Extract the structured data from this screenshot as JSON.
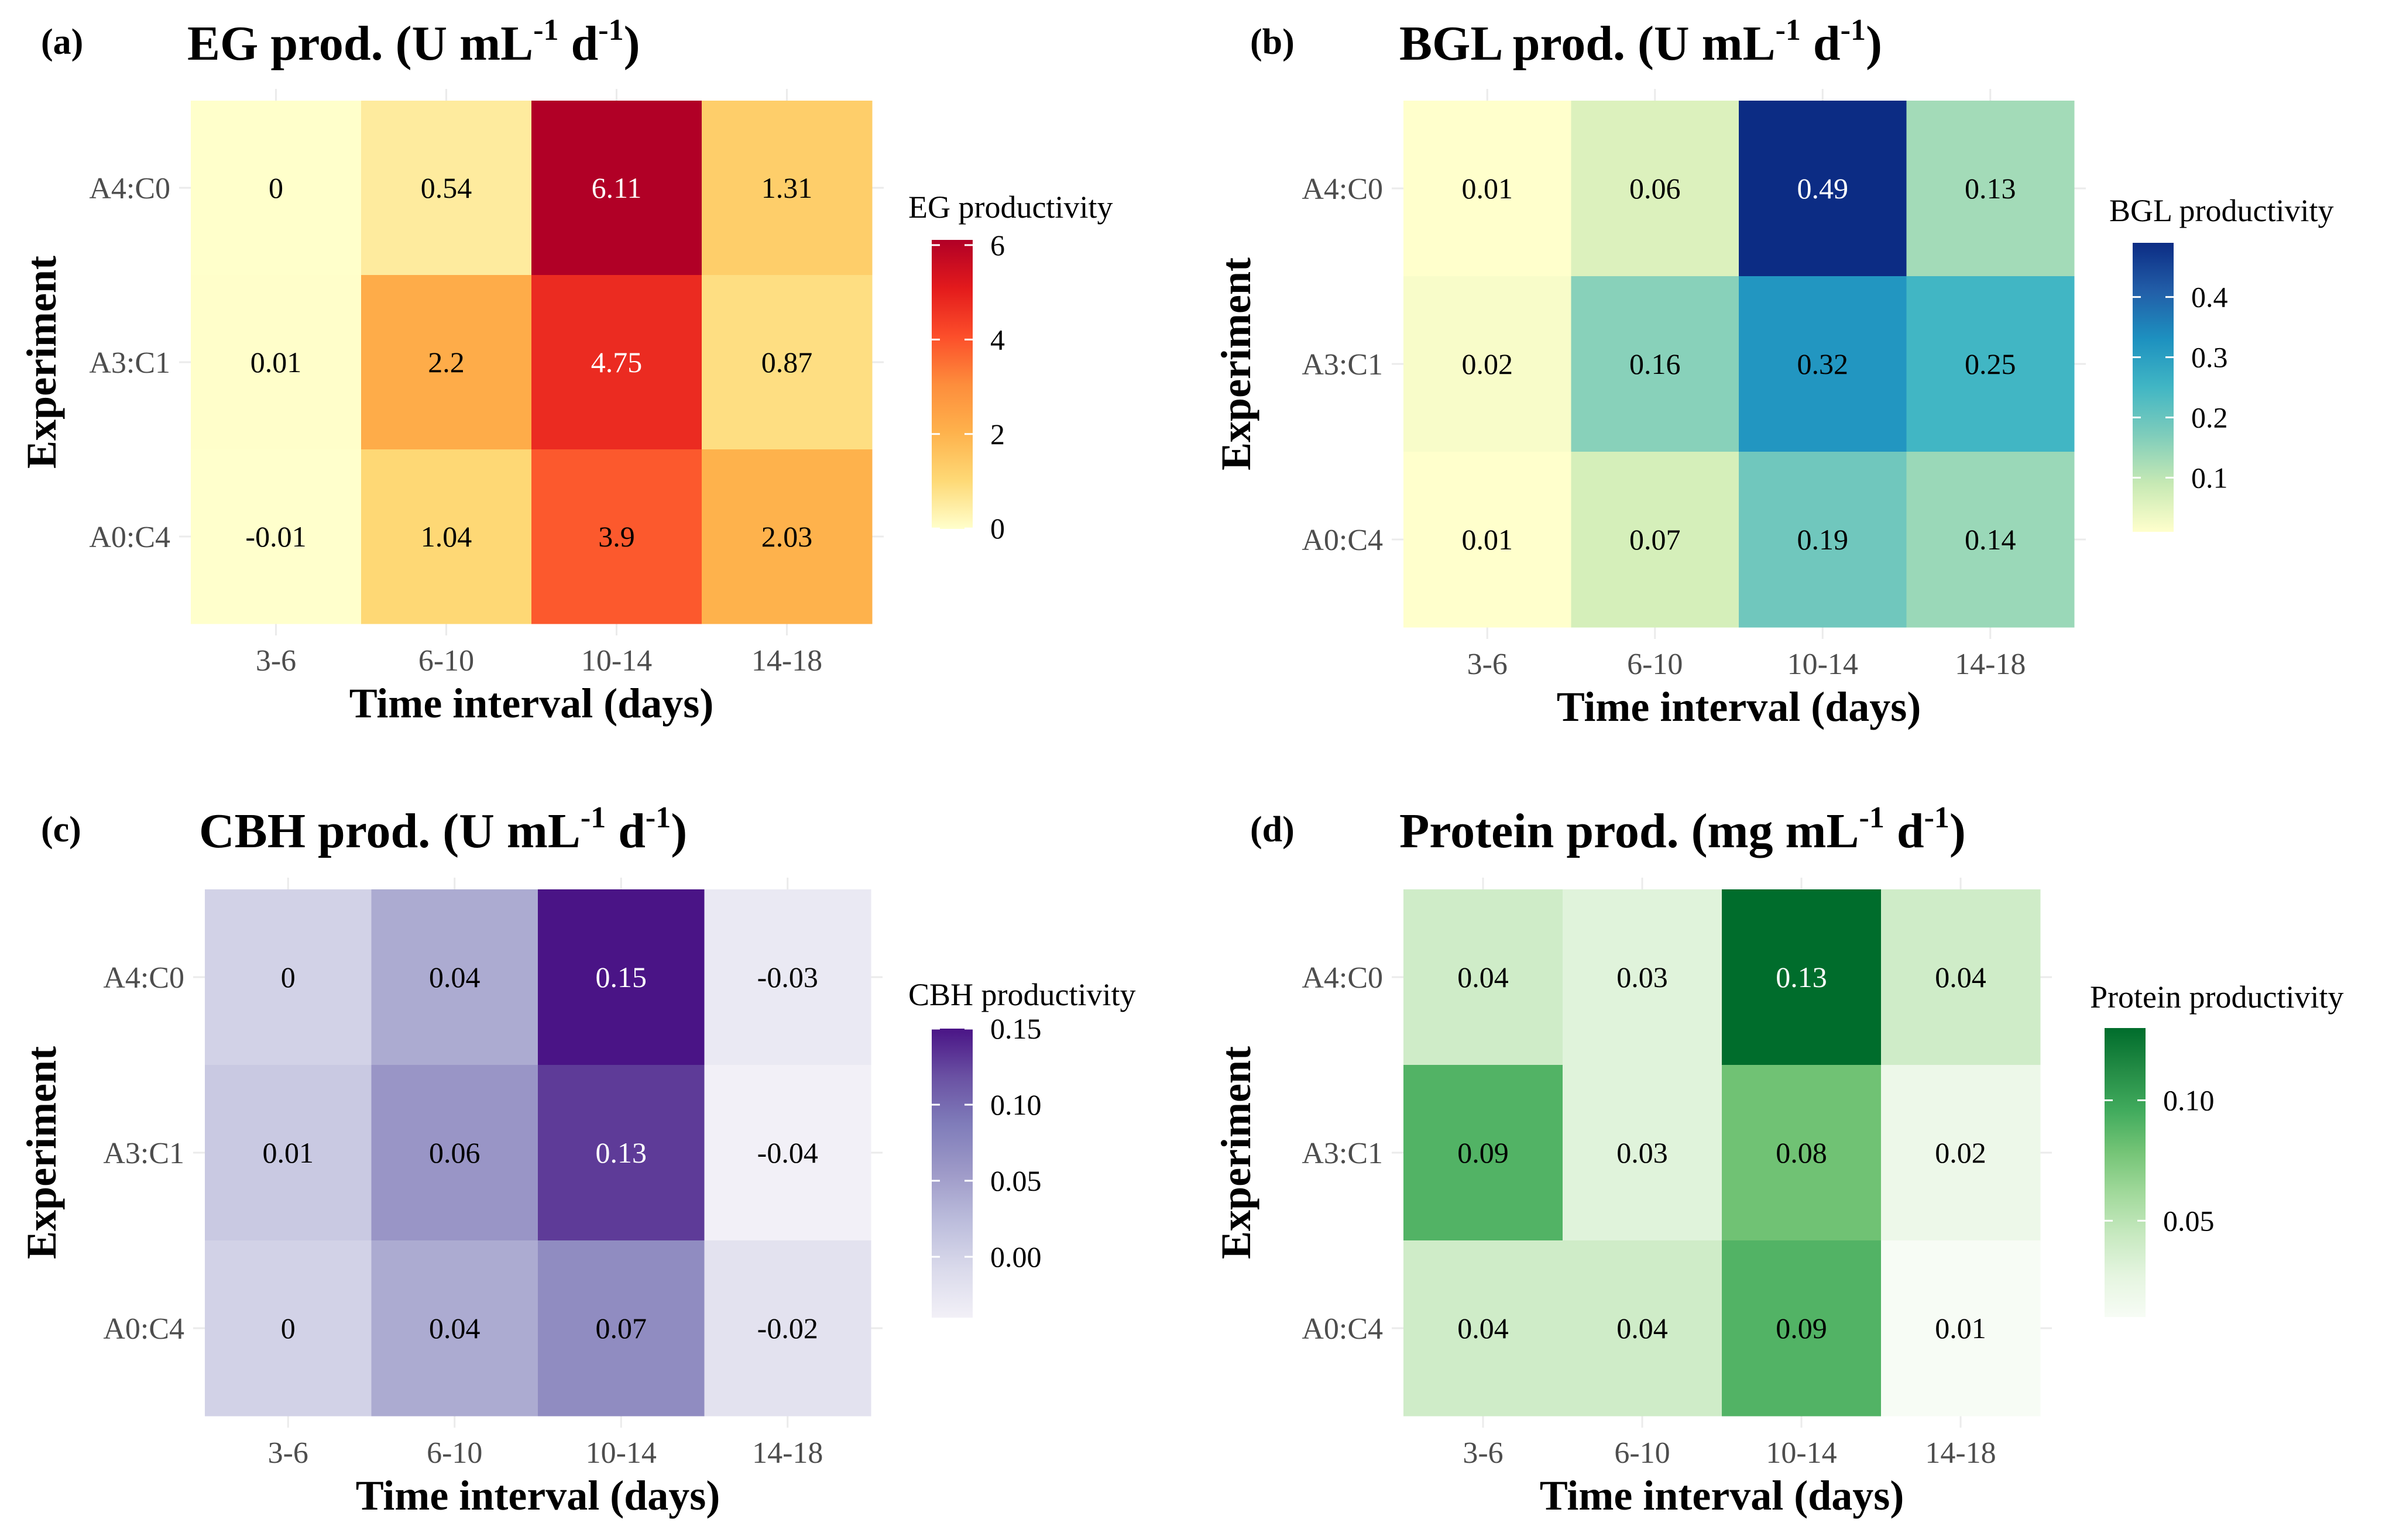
{
  "chart_data": [
    {
      "type": "heatmap",
      "panel_label": "(a)",
      "title_main": "EG prod.  (U mL",
      "title_sup1": "-1",
      "title_mid": " d",
      "title_sup2": "-1",
      "title_end": ")",
      "xlabel": "Time interval (days)",
      "ylabel": "Experiment",
      "x_categories": [
        "3-6",
        "6-10",
        "10-14",
        "14-18"
      ],
      "y_categories": [
        "A4:C0",
        "A3:C1",
        "A0:C4"
      ],
      "cell_labels": [
        [
          "0",
          "0.54",
          "6.11",
          "1.31"
        ],
        [
          "0.01",
          "2.2",
          "4.75",
          "0.87"
        ],
        [
          "-0.01",
          "1.04",
          "3.9",
          "2.03"
        ]
      ],
      "values": [
        [
          0,
          0.54,
          6.11,
          1.31
        ],
        [
          0.01,
          2.2,
          4.75,
          0.87
        ],
        [
          -0.01,
          1.04,
          3.9,
          2.03
        ]
      ],
      "legend_title": "EG productivity",
      "legend_ticks": [
        0,
        2,
        4,
        6
      ],
      "legend_tick_labels": [
        "0",
        "2",
        "4",
        "6"
      ],
      "scale_range": [
        -0.01,
        6.11
      ],
      "colors": [
        "#ffffcc",
        "#fed976",
        "#feb24c",
        "#fd8d3c",
        "#fc4e2a",
        "#e31a1c",
        "#b10026"
      ]
    },
    {
      "type": "heatmap",
      "panel_label": "(b)",
      "title_main": "BGL prod.  (U mL",
      "title_sup1": "-1",
      "title_mid": " d",
      "title_sup2": "-1",
      "title_end": ")",
      "xlabel": "Time interval (days)",
      "ylabel": "Experiment",
      "x_categories": [
        "3-6",
        "6-10",
        "10-14",
        "14-18"
      ],
      "y_categories": [
        "A4:C0",
        "A3:C1",
        "A0:C4"
      ],
      "cell_labels": [
        [
          "0.01",
          "0.06",
          "0.49",
          "0.13"
        ],
        [
          "0.02",
          "0.16",
          "0.32",
          "0.25"
        ],
        [
          "0.01",
          "0.07",
          "0.19",
          "0.14"
        ]
      ],
      "values": [
        [
          0.01,
          0.06,
          0.49,
          0.13
        ],
        [
          0.02,
          0.16,
          0.32,
          0.25
        ],
        [
          0.01,
          0.07,
          0.19,
          0.14
        ]
      ],
      "legend_title": "BGL productivity",
      "legend_ticks": [
        0.1,
        0.2,
        0.3,
        0.4
      ],
      "legend_tick_labels": [
        "0.1",
        "0.2",
        "0.3",
        "0.4"
      ],
      "scale_range": [
        0.01,
        0.49
      ],
      "colors": [
        "#ffffcc",
        "#c7e9b4",
        "#7fcdbb",
        "#41b6c4",
        "#1d91c0",
        "#225ea8",
        "#0c2c84"
      ]
    },
    {
      "type": "heatmap",
      "panel_label": "(c)",
      "title_main": "CBH prod.  (U mL",
      "title_sup1": "-1",
      "title_mid": " d",
      "title_sup2": "-1",
      "title_end": ")",
      "xlabel": "Time interval (days)",
      "ylabel": "Experiment",
      "x_categories": [
        "3-6",
        "6-10",
        "10-14",
        "14-18"
      ],
      "y_categories": [
        "A4:C0",
        "A3:C1",
        "A0:C4"
      ],
      "cell_labels": [
        [
          "0",
          "0.04",
          "0.15",
          "-0.03"
        ],
        [
          "0.01",
          "0.06",
          "0.13",
          "-0.04"
        ],
        [
          "0",
          "0.04",
          "0.07",
          "-0.02"
        ]
      ],
      "values": [
        [
          0,
          0.04,
          0.15,
          -0.03
        ],
        [
          0.01,
          0.06,
          0.13,
          -0.04
        ],
        [
          0,
          0.04,
          0.07,
          -0.02
        ]
      ],
      "legend_title": "CBH productivity",
      "legend_ticks": [
        0,
        0.05,
        0.1,
        0.15
      ],
      "legend_tick_labels": [
        "0.00",
        "0.05",
        "0.10",
        "0.15"
      ],
      "scale_range": [
        -0.04,
        0.15
      ],
      "colors": [
        "#f2f0f7",
        "#dadaeb",
        "#bcbddc",
        "#9e9ac8",
        "#807dba",
        "#6a51a3",
        "#4a1486"
      ]
    },
    {
      "type": "heatmap",
      "panel_label": "(d)",
      "title_main": "Protein prod.  (mg mL",
      "title_sup1": "-1",
      "title_mid": " d",
      "title_sup2": "-1",
      "title_end": ")",
      "xlabel": "Time interval (days)",
      "ylabel": "Experiment",
      "x_categories": [
        "3-6",
        "6-10",
        "10-14",
        "14-18"
      ],
      "y_categories": [
        "A4:C0",
        "A3:C1",
        "A0:C4"
      ],
      "cell_labels": [
        [
          "0.04",
          "0.03",
          "0.13",
          "0.04"
        ],
        [
          "0.09",
          "0.03",
          "0.08",
          "0.02"
        ],
        [
          "0.04",
          "0.04",
          "0.09",
          "0.01"
        ]
      ],
      "values": [
        [
          0.04,
          0.03,
          0.13,
          0.04
        ],
        [
          0.09,
          0.03,
          0.08,
          0.02
        ],
        [
          0.04,
          0.04,
          0.09,
          0.01
        ]
      ],
      "legend_title": "Protein productivity",
      "legend_ticks": [
        0.05,
        0.1
      ],
      "legend_tick_labels": [
        "0.05",
        "0.10"
      ],
      "scale_range": [
        0.01,
        0.13
      ],
      "colors": [
        "#f7fcf5",
        "#e5f5e0",
        "#c7e9c0",
        "#a1d99b",
        "#74c476",
        "#41ab5d",
        "#238b45",
        "#006d2c"
      ]
    }
  ]
}
